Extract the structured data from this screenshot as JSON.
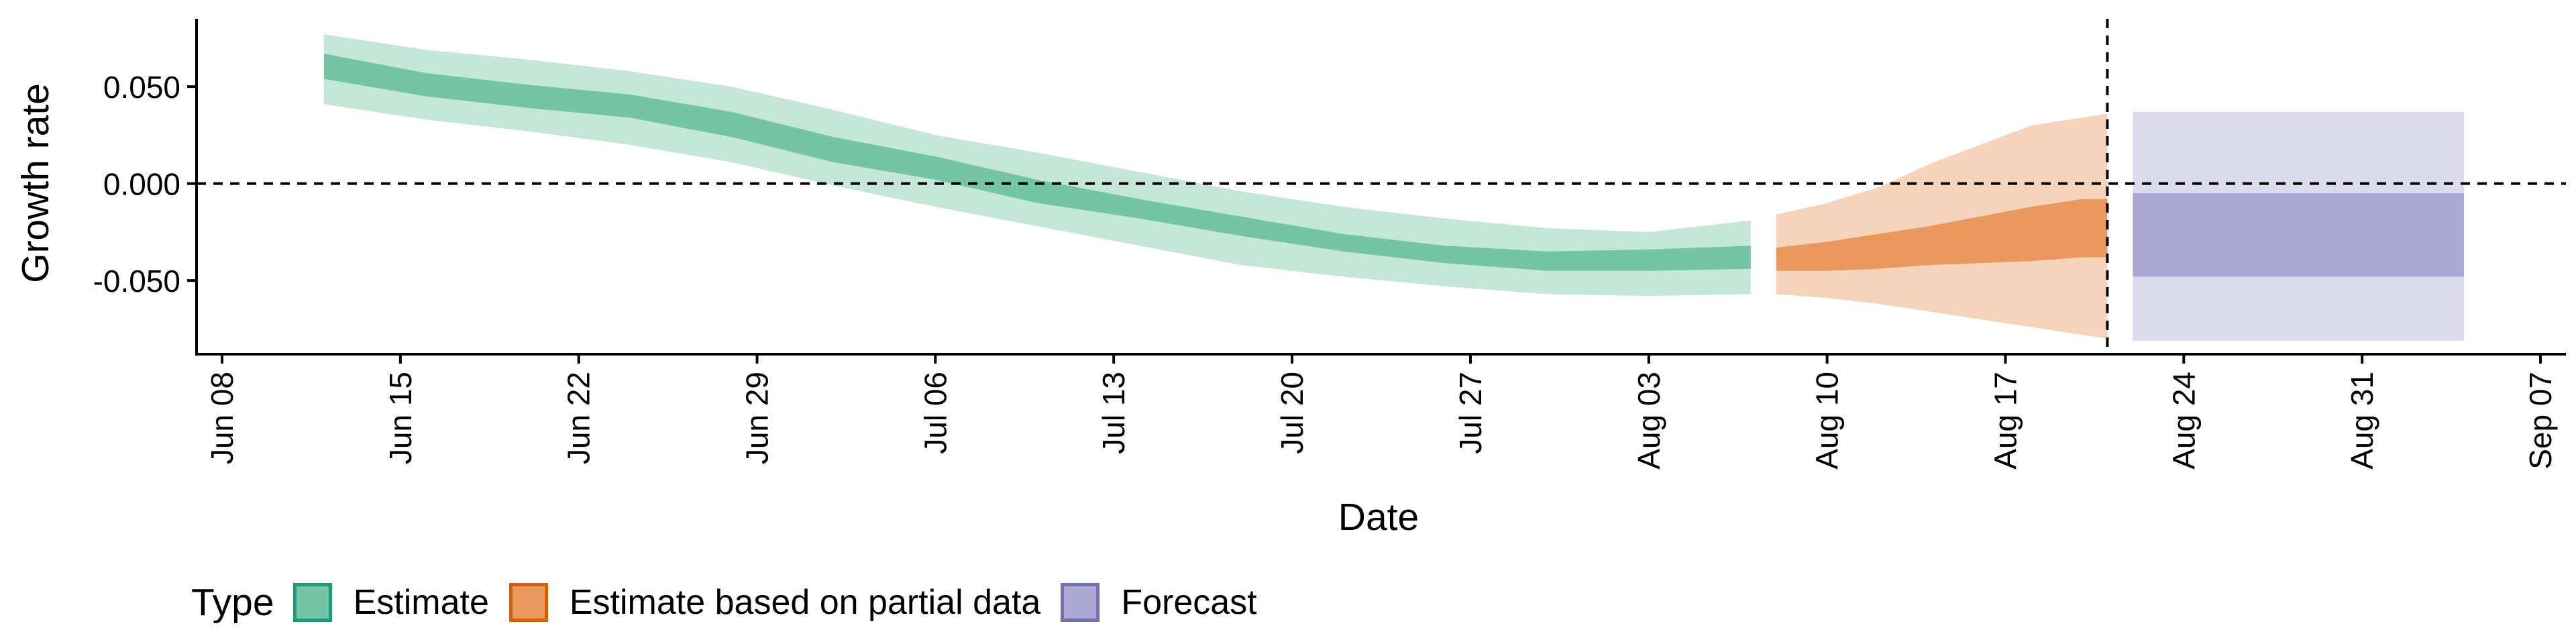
{
  "chart_data": {
    "type": "area",
    "xlabel": "Date",
    "ylabel": "Growth rate",
    "x_range": [
      "2020-06-07",
      "2020-09-08"
    ],
    "y_range": [
      -0.088,
      0.085
    ],
    "x_ticks": [
      "Jun 08",
      "Jun 15",
      "Jun 22",
      "Jun 29",
      "Jul 06",
      "Jul 13",
      "Jul 20",
      "Jul 27",
      "Aug 03",
      "Aug 10",
      "Aug 17",
      "Aug 24",
      "Aug 31",
      "Sep 07"
    ],
    "x_tick_dates": [
      "2020-06-08",
      "2020-06-15",
      "2020-06-22",
      "2020-06-29",
      "2020-07-06",
      "2020-07-13",
      "2020-07-20",
      "2020-07-27",
      "2020-08-03",
      "2020-08-10",
      "2020-08-17",
      "2020-08-24",
      "2020-08-31",
      "2020-09-07"
    ],
    "y_ticks": [
      0.05,
      0.0,
      -0.05
    ],
    "y_tick_labels": [
      "0.050",
      "0.000",
      "-0.050"
    ],
    "reference_lines": {
      "horizontal_y": 0.0,
      "vertical_date": "2020-08-21",
      "style": "dashed"
    },
    "grid": false,
    "legend": {
      "title": "Type",
      "position": "bottom-left"
    },
    "series": [
      {
        "name": "Estimate",
        "color": "#1B9E77",
        "fill": "#74C5A6",
        "date": [
          "2020-06-12",
          "2020-06-16",
          "2020-06-20",
          "2020-06-24",
          "2020-06-28",
          "2020-07-02",
          "2020-07-06",
          "2020-07-10",
          "2020-07-14",
          "2020-07-18",
          "2020-07-22",
          "2020-07-26",
          "2020-07-30",
          "2020-08-03",
          "2020-08-07"
        ],
        "median": [
          0.061,
          0.052,
          0.046,
          0.041,
          0.032,
          0.019,
          0.009,
          -0.004,
          -0.013,
          -0.022,
          -0.03,
          -0.036,
          -0.039,
          -0.04,
          -0.038
        ],
        "lower_50": [
          0.054,
          0.045,
          0.039,
          0.034,
          0.024,
          0.011,
          0.002,
          -0.01,
          -0.018,
          -0.027,
          -0.035,
          -0.041,
          -0.045,
          -0.045,
          -0.044
        ],
        "upper_50": [
          0.067,
          0.057,
          0.051,
          0.046,
          0.037,
          0.024,
          0.014,
          0.002,
          -0.008,
          -0.017,
          -0.026,
          -0.032,
          -0.035,
          -0.034,
          -0.032
        ],
        "lower_90": [
          0.041,
          0.033,
          0.027,
          0.02,
          0.011,
          -0.001,
          -0.012,
          -0.022,
          -0.032,
          -0.042,
          -0.048,
          -0.053,
          -0.057,
          -0.058,
          -0.057
        ],
        "upper_90": [
          0.077,
          0.069,
          0.064,
          0.058,
          0.05,
          0.038,
          0.025,
          0.016,
          0.006,
          -0.004,
          -0.012,
          -0.018,
          -0.023,
          -0.025,
          -0.019
        ]
      },
      {
        "name": "Estimate based on partial data",
        "color": "#D95F02",
        "fill": "#E9985E",
        "date": [
          "2020-08-08",
          "2020-08-10",
          "2020-08-12",
          "2020-08-14",
          "2020-08-16",
          "2020-08-18",
          "2020-08-20",
          "2020-08-21"
        ],
        "median": [
          -0.039,
          -0.038,
          -0.036,
          -0.032,
          -0.029,
          -0.026,
          -0.022,
          -0.022
        ],
        "lower_50": [
          -0.045,
          -0.045,
          -0.044,
          -0.042,
          -0.041,
          -0.04,
          -0.038,
          -0.038
        ],
        "upper_50": [
          -0.033,
          -0.03,
          -0.026,
          -0.022,
          -0.017,
          -0.012,
          -0.008,
          -0.008
        ],
        "lower_90": [
          -0.057,
          -0.059,
          -0.062,
          -0.066,
          -0.07,
          -0.074,
          -0.078,
          -0.08
        ],
        "upper_90": [
          -0.016,
          -0.01,
          -0.002,
          0.01,
          0.02,
          0.03,
          0.034,
          0.036
        ]
      },
      {
        "name": "Forecast",
        "color": "#7570B3",
        "fill": "#ABA7D3",
        "date": [
          "2020-08-22",
          "2020-09-04"
        ],
        "lower_50": [
          -0.048,
          -0.048
        ],
        "upper_50": [
          -0.005,
          -0.005
        ],
        "lower_90": [
          -0.081,
          -0.081
        ],
        "upper_90": [
          0.037,
          0.037
        ]
      }
    ]
  }
}
